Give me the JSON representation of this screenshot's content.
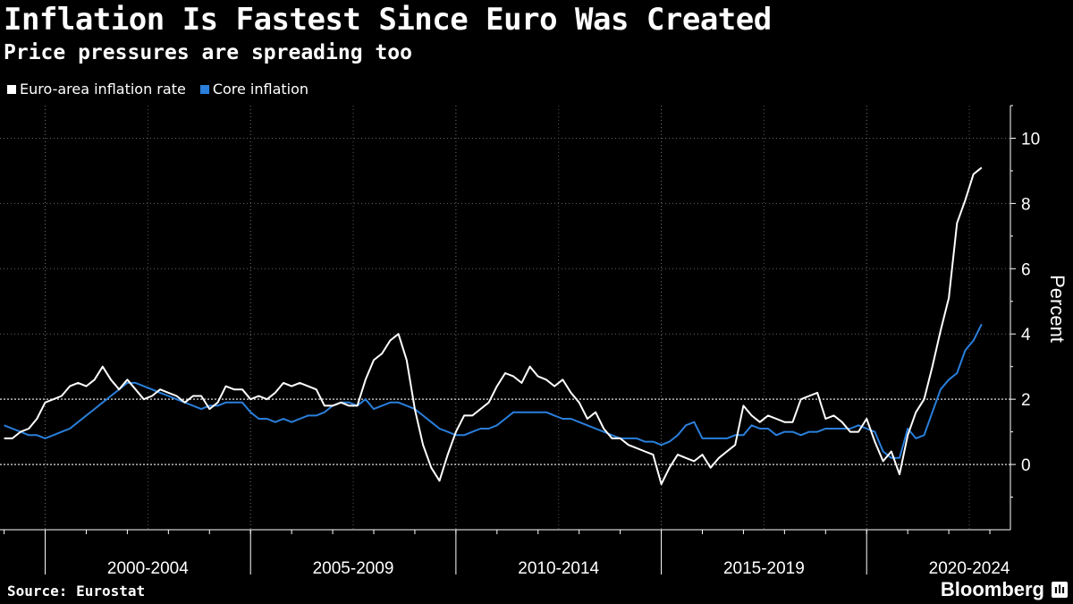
{
  "title": "Inflation Is Fastest Since Euro Was Created",
  "subtitle": "Price pressures are spreading too",
  "source": "Source: Eurostat",
  "brand": "Bloomberg",
  "brand_mark": "ılı",
  "colors": {
    "background": "#000000",
    "headline": "#ffffff",
    "core": "#2a7fdb",
    "grid": "#888888"
  },
  "chart_data": {
    "type": "line",
    "xlabel": "",
    "ylabel": "Percent",
    "ylim": [
      -2,
      11
    ],
    "yticks": [
      0,
      2,
      4,
      6,
      8,
      10
    ],
    "x_period_labels": [
      "2000-2004",
      "2005-2009",
      "2010-2014",
      "2015-2019",
      "2020-2024"
    ],
    "x_range": [
      1998.9,
      2023.5
    ],
    "series": [
      {
        "name": "Euro-area inflation rate",
        "color": "#ffffff",
        "points": [
          [
            1999.0,
            0.8
          ],
          [
            1999.2,
            0.8
          ],
          [
            1999.4,
            1.0
          ],
          [
            1999.6,
            1.1
          ],
          [
            1999.8,
            1.4
          ],
          [
            2000.0,
            1.9
          ],
          [
            2000.2,
            2.0
          ],
          [
            2000.4,
            2.1
          ],
          [
            2000.6,
            2.4
          ],
          [
            2000.8,
            2.5
          ],
          [
            2001.0,
            2.4
          ],
          [
            2001.2,
            2.6
          ],
          [
            2001.4,
            3.0
          ],
          [
            2001.6,
            2.6
          ],
          [
            2001.8,
            2.3
          ],
          [
            2002.0,
            2.6
          ],
          [
            2002.2,
            2.3
          ],
          [
            2002.4,
            2.0
          ],
          [
            2002.6,
            2.1
          ],
          [
            2002.8,
            2.3
          ],
          [
            2003.0,
            2.2
          ],
          [
            2003.2,
            2.1
          ],
          [
            2003.4,
            1.9
          ],
          [
            2003.6,
            2.1
          ],
          [
            2003.8,
            2.1
          ],
          [
            2004.0,
            1.7
          ],
          [
            2004.2,
            1.9
          ],
          [
            2004.4,
            2.4
          ],
          [
            2004.6,
            2.3
          ],
          [
            2004.8,
            2.3
          ],
          [
            2005.0,
            2.0
          ],
          [
            2005.2,
            2.1
          ],
          [
            2005.4,
            2.0
          ],
          [
            2005.6,
            2.2
          ],
          [
            2005.8,
            2.5
          ],
          [
            2006.0,
            2.4
          ],
          [
            2006.2,
            2.5
          ],
          [
            2006.4,
            2.4
          ],
          [
            2006.6,
            2.3
          ],
          [
            2006.8,
            1.8
          ],
          [
            2007.0,
            1.8
          ],
          [
            2007.2,
            1.9
          ],
          [
            2007.4,
            1.8
          ],
          [
            2007.6,
            1.8
          ],
          [
            2007.8,
            2.6
          ],
          [
            2008.0,
            3.2
          ],
          [
            2008.2,
            3.4
          ],
          [
            2008.4,
            3.8
          ],
          [
            2008.6,
            4.0
          ],
          [
            2008.8,
            3.2
          ],
          [
            2009.0,
            1.7
          ],
          [
            2009.2,
            0.6
          ],
          [
            2009.4,
            -0.1
          ],
          [
            2009.6,
            -0.5
          ],
          [
            2009.8,
            0.3
          ],
          [
            2010.0,
            1.0
          ],
          [
            2010.2,
            1.5
          ],
          [
            2010.4,
            1.5
          ],
          [
            2010.6,
            1.7
          ],
          [
            2010.8,
            1.9
          ],
          [
            2011.0,
            2.4
          ],
          [
            2011.2,
            2.8
          ],
          [
            2011.4,
            2.7
          ],
          [
            2011.6,
            2.5
          ],
          [
            2011.8,
            3.0
          ],
          [
            2012.0,
            2.7
          ],
          [
            2012.2,
            2.6
          ],
          [
            2012.4,
            2.4
          ],
          [
            2012.6,
            2.6
          ],
          [
            2012.8,
            2.2
          ],
          [
            2013.0,
            1.9
          ],
          [
            2013.2,
            1.4
          ],
          [
            2013.4,
            1.6
          ],
          [
            2013.6,
            1.1
          ],
          [
            2013.8,
            0.8
          ],
          [
            2014.0,
            0.8
          ],
          [
            2014.2,
            0.6
          ],
          [
            2014.4,
            0.5
          ],
          [
            2014.6,
            0.4
          ],
          [
            2014.8,
            0.3
          ],
          [
            2015.0,
            -0.6
          ],
          [
            2015.2,
            -0.1
          ],
          [
            2015.4,
            0.3
          ],
          [
            2015.6,
            0.2
          ],
          [
            2015.8,
            0.1
          ],
          [
            2016.0,
            0.3
          ],
          [
            2016.2,
            -0.1
          ],
          [
            2016.4,
            0.2
          ],
          [
            2016.6,
            0.4
          ],
          [
            2016.8,
            0.6
          ],
          [
            2017.0,
            1.8
          ],
          [
            2017.2,
            1.5
          ],
          [
            2017.4,
            1.3
          ],
          [
            2017.6,
            1.5
          ],
          [
            2017.8,
            1.4
          ],
          [
            2018.0,
            1.3
          ],
          [
            2018.2,
            1.3
          ],
          [
            2018.4,
            2.0
          ],
          [
            2018.6,
            2.1
          ],
          [
            2018.8,
            2.2
          ],
          [
            2019.0,
            1.4
          ],
          [
            2019.2,
            1.5
          ],
          [
            2019.4,
            1.3
          ],
          [
            2019.6,
            1.0
          ],
          [
            2019.8,
            1.0
          ],
          [
            2020.0,
            1.4
          ],
          [
            2020.2,
            0.7
          ],
          [
            2020.4,
            0.1
          ],
          [
            2020.6,
            0.4
          ],
          [
            2020.8,
            -0.3
          ],
          [
            2021.0,
            0.9
          ],
          [
            2021.2,
            1.6
          ],
          [
            2021.4,
            2.0
          ],
          [
            2021.6,
            3.0
          ],
          [
            2021.8,
            4.1
          ],
          [
            2022.0,
            5.1
          ],
          [
            2022.2,
            7.4
          ],
          [
            2022.4,
            8.1
          ],
          [
            2022.6,
            8.9
          ],
          [
            2022.8,
            9.1
          ]
        ]
      },
      {
        "name": "Core inflation",
        "color": "#2a7fdb",
        "points": [
          [
            1999.0,
            1.2
          ],
          [
            1999.2,
            1.1
          ],
          [
            1999.4,
            1.0
          ],
          [
            1999.6,
            0.9
          ],
          [
            1999.8,
            0.9
          ],
          [
            2000.0,
            0.8
          ],
          [
            2000.2,
            0.9
          ],
          [
            2000.4,
            1.0
          ],
          [
            2000.6,
            1.1
          ],
          [
            2000.8,
            1.3
          ],
          [
            2001.0,
            1.5
          ],
          [
            2001.2,
            1.7
          ],
          [
            2001.4,
            1.9
          ],
          [
            2001.6,
            2.1
          ],
          [
            2001.8,
            2.3
          ],
          [
            2002.0,
            2.5
          ],
          [
            2002.2,
            2.5
          ],
          [
            2002.4,
            2.4
          ],
          [
            2002.6,
            2.3
          ],
          [
            2002.8,
            2.2
          ],
          [
            2003.0,
            2.1
          ],
          [
            2003.2,
            2.0
          ],
          [
            2003.4,
            1.9
          ],
          [
            2003.6,
            1.8
          ],
          [
            2003.8,
            1.7
          ],
          [
            2004.0,
            1.8
          ],
          [
            2004.2,
            1.8
          ],
          [
            2004.4,
            1.9
          ],
          [
            2004.6,
            1.9
          ],
          [
            2004.8,
            1.9
          ],
          [
            2005.0,
            1.6
          ],
          [
            2005.2,
            1.4
          ],
          [
            2005.4,
            1.4
          ],
          [
            2005.6,
            1.3
          ],
          [
            2005.8,
            1.4
          ],
          [
            2006.0,
            1.3
          ],
          [
            2006.2,
            1.4
          ],
          [
            2006.4,
            1.5
          ],
          [
            2006.6,
            1.5
          ],
          [
            2006.8,
            1.6
          ],
          [
            2007.0,
            1.8
          ],
          [
            2007.2,
            1.9
          ],
          [
            2007.4,
            1.9
          ],
          [
            2007.6,
            1.8
          ],
          [
            2007.8,
            2.0
          ],
          [
            2008.0,
            1.7
          ],
          [
            2008.2,
            1.8
          ],
          [
            2008.4,
            1.9
          ],
          [
            2008.6,
            1.9
          ],
          [
            2008.8,
            1.8
          ],
          [
            2009.0,
            1.7
          ],
          [
            2009.2,
            1.5
          ],
          [
            2009.4,
            1.3
          ],
          [
            2009.6,
            1.1
          ],
          [
            2009.8,
            1.0
          ],
          [
            2010.0,
            0.9
          ],
          [
            2010.2,
            0.9
          ],
          [
            2010.4,
            1.0
          ],
          [
            2010.6,
            1.1
          ],
          [
            2010.8,
            1.1
          ],
          [
            2011.0,
            1.2
          ],
          [
            2011.2,
            1.4
          ],
          [
            2011.4,
            1.6
          ],
          [
            2011.6,
            1.6
          ],
          [
            2011.8,
            1.6
          ],
          [
            2012.0,
            1.6
          ],
          [
            2012.2,
            1.6
          ],
          [
            2012.4,
            1.5
          ],
          [
            2012.6,
            1.4
          ],
          [
            2012.8,
            1.4
          ],
          [
            2013.0,
            1.3
          ],
          [
            2013.2,
            1.2
          ],
          [
            2013.4,
            1.1
          ],
          [
            2013.6,
            1.0
          ],
          [
            2013.8,
            0.9
          ],
          [
            2014.0,
            0.8
          ],
          [
            2014.2,
            0.8
          ],
          [
            2014.4,
            0.8
          ],
          [
            2014.6,
            0.7
          ],
          [
            2014.8,
            0.7
          ],
          [
            2015.0,
            0.6
          ],
          [
            2015.2,
            0.7
          ],
          [
            2015.4,
            0.9
          ],
          [
            2015.6,
            1.2
          ],
          [
            2015.8,
            1.3
          ],
          [
            2016.0,
            0.8
          ],
          [
            2016.2,
            0.8
          ],
          [
            2016.4,
            0.8
          ],
          [
            2016.6,
            0.8
          ],
          [
            2016.8,
            0.9
          ],
          [
            2017.0,
            0.9
          ],
          [
            2017.2,
            1.2
          ],
          [
            2017.4,
            1.1
          ],
          [
            2017.6,
            1.1
          ],
          [
            2017.8,
            0.9
          ],
          [
            2018.0,
            1.0
          ],
          [
            2018.2,
            1.0
          ],
          [
            2018.4,
            0.9
          ],
          [
            2018.6,
            1.0
          ],
          [
            2018.8,
            1.0
          ],
          [
            2019.0,
            1.1
          ],
          [
            2019.2,
            1.1
          ],
          [
            2019.4,
            1.1
          ],
          [
            2019.6,
            1.1
          ],
          [
            2019.8,
            1.2
          ],
          [
            2020.0,
            1.1
          ],
          [
            2020.2,
            1.0
          ],
          [
            2020.4,
            0.4
          ],
          [
            2020.6,
            0.2
          ],
          [
            2020.8,
            0.2
          ],
          [
            2021.0,
            1.1
          ],
          [
            2021.2,
            0.8
          ],
          [
            2021.4,
            0.9
          ],
          [
            2021.6,
            1.6
          ],
          [
            2021.8,
            2.3
          ],
          [
            2022.0,
            2.6
          ],
          [
            2022.2,
            2.8
          ],
          [
            2022.4,
            3.5
          ],
          [
            2022.6,
            3.8
          ],
          [
            2022.8,
            4.3
          ]
        ]
      }
    ]
  }
}
